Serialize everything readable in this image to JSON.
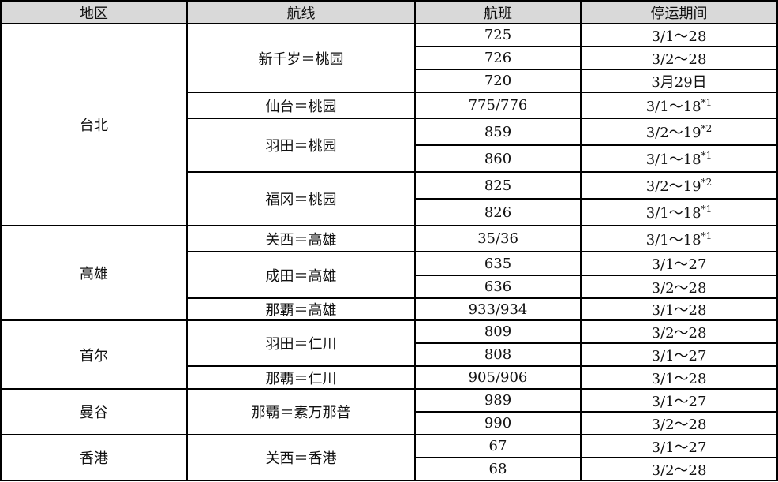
{
  "headers": [
    "地区",
    "航线",
    "航班",
    "停运期间"
  ],
  "regions": [
    {
      "name": "台北",
      "routes": [
        {
          "name": "新千岁＝桃园",
          "flights": [
            {
              "no": "725",
              "period": "3/1～28",
              "note": ""
            },
            {
              "no": "726",
              "period": "3/2～28",
              "note": ""
            },
            {
              "no": "720",
              "period": "3月29日",
              "note": ""
            }
          ]
        },
        {
          "name": "仙台＝桃园",
          "flights": [
            {
              "no": "775/776",
              "period": "3/1～18",
              "note": "*1"
            }
          ]
        },
        {
          "name": "羽田＝桃园",
          "flights": [
            {
              "no": "859",
              "period": "3/2～19",
              "note": "*2"
            },
            {
              "no": "860",
              "period": "3/1～18",
              "note": "*1"
            }
          ]
        },
        {
          "name": "福冈＝桃园",
          "flights": [
            {
              "no": "825",
              "period": "3/2～19",
              "note": "*2"
            },
            {
              "no": "826",
              "period": "3/1～18",
              "note": "*1"
            }
          ]
        }
      ]
    },
    {
      "name": "高雄",
      "routes": [
        {
          "name": "关西＝高雄",
          "flights": [
            {
              "no": "35/36",
              "period": "3/1～18",
              "note": "*1"
            }
          ]
        },
        {
          "name": "成田＝高雄",
          "flights": [
            {
              "no": "635",
              "period": "3/1～27",
              "note": ""
            },
            {
              "no": "636",
              "period": "3/2～28",
              "note": ""
            }
          ]
        },
        {
          "name": "那覇＝高雄",
          "flights": [
            {
              "no": "933/934",
              "period": "3/1～28",
              "note": ""
            }
          ]
        }
      ]
    },
    {
      "name": "首尔",
      "routes": [
        {
          "name": "羽田＝仁川",
          "flights": [
            {
              "no": "809",
              "period": "3/2～28",
              "note": ""
            },
            {
              "no": "808",
              "period": "3/1～27",
              "note": ""
            }
          ]
        },
        {
          "name": "那覇＝仁川",
          "flights": [
            {
              "no": "905/906",
              "period": "3/1～28",
              "note": ""
            }
          ]
        }
      ]
    },
    {
      "name": "曼谷",
      "routes": [
        {
          "name": "那覇＝素万那普",
          "flights": [
            {
              "no": "989",
              "period": "3/1～27",
              "note": ""
            },
            {
              "no": "990",
              "period": "3/2～28",
              "note": ""
            }
          ]
        }
      ]
    },
    {
      "name": "香港",
      "routes": [
        {
          "name": "关西＝香港",
          "flights": [
            {
              "no": "67",
              "period": "3/1～27",
              "note": ""
            },
            {
              "no": "68",
              "period": "3/2～28",
              "note": ""
            }
          ]
        }
      ]
    }
  ]
}
